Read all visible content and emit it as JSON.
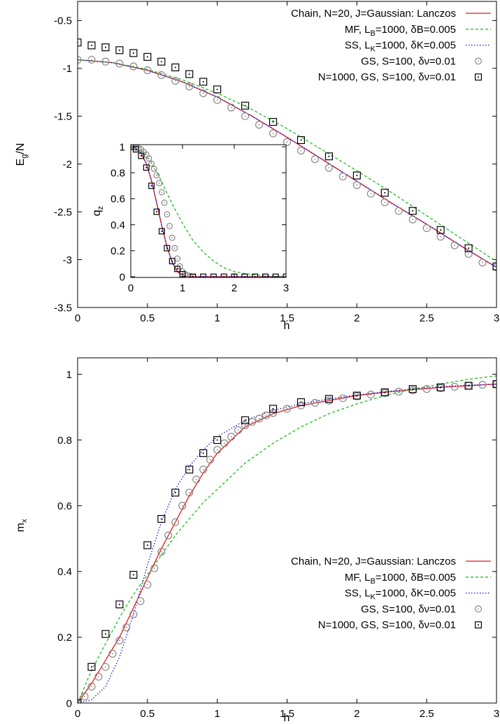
{
  "chart_data": [
    {
      "type": "line",
      "xlabel": "h",
      "ylabel_main": "E",
      "ylabel_sub": "g",
      "ylabel_tail": "/N",
      "xlim": [
        0,
        3
      ],
      "ylim": [
        -3.5,
        -0.3
      ],
      "xticks": [
        "0",
        "0.5",
        "1",
        "1.5",
        "2",
        "2.5",
        "3"
      ],
      "yticks": [
        "-3.5",
        "-3",
        "-2.5",
        "-2",
        "-1.5",
        "-1",
        "-0.5"
      ],
      "xtick_values": [
        0,
        0.5,
        1,
        1.5,
        2,
        2.5,
        3
      ],
      "ytick_values": [
        -3.5,
        -3,
        -2.5,
        -2,
        -1.5,
        -1,
        -0.5
      ],
      "legend_position": "top-right",
      "legend": [
        {
          "parts": [
            "Chain, N=20, J=Gaussian: Lanczos"
          ]
        },
        {
          "parts": [
            "MF, L",
            "B",
            "=1000, δB=0.005"
          ]
        },
        {
          "parts": [
            "SS, L",
            "K",
            "=1000, δK=0.005"
          ]
        },
        {
          "parts": [
            "GS, S=100, δν=0.01"
          ]
        },
        {
          "parts": [
            "N=1000, GS, S=100, δν=0.01"
          ]
        }
      ],
      "series": [
        {
          "key": "lanczos",
          "style": "solid",
          "color": "#e41a1c",
          "x": [
            0,
            0.25,
            0.5,
            0.75,
            1,
            1.25,
            1.5,
            1.75,
            2,
            2.25,
            2.5,
            2.75,
            3
          ],
          "y": [
            -0.91,
            -0.94,
            -1.02,
            -1.14,
            -1.3,
            -1.5,
            -1.72,
            -1.95,
            -2.18,
            -2.41,
            -2.63,
            -2.86,
            -3.08
          ]
        },
        {
          "key": "mf",
          "style": "dashed",
          "color": "#1fbf1f",
          "x": [
            0,
            0.25,
            0.5,
            0.75,
            1,
            1.25,
            1.5,
            1.75,
            2,
            2.25,
            2.5,
            2.75,
            3
          ],
          "y": [
            -0.91,
            -0.94,
            -1.01,
            -1.12,
            -1.26,
            -1.43,
            -1.63,
            -1.85,
            -2.07,
            -2.3,
            -2.54,
            -2.78,
            -3.02
          ]
        },
        {
          "key": "ss",
          "style": "dotted",
          "color": "#1515d6",
          "x": [
            0,
            0.25,
            0.5,
            0.75,
            1,
            1.25,
            1.5,
            1.75,
            2,
            2.25,
            2.5,
            2.75,
            3
          ],
          "y": [
            -0.91,
            -0.94,
            -1.02,
            -1.14,
            -1.3,
            -1.5,
            -1.72,
            -1.95,
            -2.18,
            -2.41,
            -2.63,
            -2.86,
            -3.08
          ]
        },
        {
          "key": "gs",
          "style": "circle",
          "color": "#888888",
          "x": [
            0,
            0.1,
            0.2,
            0.3,
            0.4,
            0.5,
            0.6,
            0.7,
            0.8,
            0.9,
            1.0,
            1.1,
            1.2,
            1.3,
            1.4,
            1.5,
            1.6,
            1.7,
            1.8,
            1.9,
            2.0,
            2.1,
            2.2,
            2.3,
            2.4,
            2.5,
            2.6,
            2.7,
            2.8,
            2.9,
            3.0
          ],
          "y": [
            -0.91,
            -0.91,
            -0.93,
            -0.95,
            -0.98,
            -1.02,
            -1.07,
            -1.13,
            -1.19,
            -1.26,
            -1.33,
            -1.41,
            -1.5,
            -1.59,
            -1.68,
            -1.77,
            -1.86,
            -1.95,
            -2.04,
            -2.13,
            -2.22,
            -2.31,
            -2.4,
            -2.49,
            -2.58,
            -2.67,
            -2.76,
            -2.85,
            -2.94,
            -3.03,
            -3.08
          ]
        },
        {
          "key": "n1000",
          "style": "square",
          "color": "#000000",
          "x": [
            0,
            0.1,
            0.2,
            0.3,
            0.4,
            0.5,
            0.6,
            0.7,
            0.8,
            0.9,
            1.0,
            1.2,
            1.4,
            1.6,
            1.8,
            2.0,
            2.2,
            2.4,
            2.6,
            2.8,
            3.0
          ],
          "y": [
            -0.73,
            -0.76,
            -0.78,
            -0.81,
            -0.84,
            -0.88,
            -0.93,
            -0.99,
            -1.06,
            -1.14,
            -1.22,
            -1.39,
            -1.56,
            -1.75,
            -1.92,
            -2.12,
            -2.3,
            -2.49,
            -2.69,
            -2.88,
            -3.07
          ]
        }
      ],
      "inset": {
        "type": "line",
        "xlabel": "",
        "ylabel_main": "q",
        "ylabel_sub": "z",
        "xlim": [
          0,
          3
        ],
        "ylim": [
          0,
          1
        ],
        "xticks": [
          "0",
          "1",
          "2",
          "3"
        ],
        "yticks": [
          "0",
          "0.2",
          "0.4",
          "0.6",
          "0.8",
          "1"
        ],
        "xtick_values": [
          0,
          1,
          2,
          3
        ],
        "ytick_values": [
          0,
          0.2,
          0.4,
          0.6,
          0.8,
          1
        ],
        "series": [
          {
            "key": "lanczos",
            "style": "solid",
            "color": "#e41a1c",
            "x": [
              0,
              0.1,
              0.2,
              0.3,
              0.4,
              0.5,
              0.6,
              0.7,
              0.8,
              0.9,
              1.0,
              1.1,
              1.2,
              1.5,
              2,
              3
            ],
            "y": [
              1,
              0.99,
              0.95,
              0.87,
              0.74,
              0.57,
              0.39,
              0.23,
              0.11,
              0.04,
              0.01,
              0.002,
              0,
              0,
              0,
              0
            ]
          },
          {
            "key": "mf",
            "style": "dashed",
            "color": "#1fbf1f",
            "x": [
              0,
              0.2,
              0.4,
              0.6,
              0.8,
              1.0,
              1.2,
              1.4,
              1.6,
              1.8,
              2.0,
              2.2,
              2.4,
              2.6,
              2.8,
              3.0
            ],
            "y": [
              1,
              0.97,
              0.88,
              0.73,
              0.56,
              0.41,
              0.28,
              0.19,
              0.12,
              0.07,
              0.04,
              0.025,
              0.015,
              0.008,
              0.004,
              0.002
            ]
          },
          {
            "key": "ss",
            "style": "dotted",
            "color": "#1515d6",
            "x": [
              0,
              0.1,
              0.2,
              0.3,
              0.4,
              0.5,
              0.6,
              0.7,
              0.8,
              0.9,
              1.0,
              1.1,
              1.2,
              1.5,
              2,
              3
            ],
            "y": [
              1,
              0.99,
              0.95,
              0.87,
              0.74,
              0.57,
              0.39,
              0.23,
              0.11,
              0.04,
              0.01,
              0.002,
              0,
              0,
              0,
              0
            ]
          },
          {
            "key": "gs",
            "style": "circle",
            "color": "#888888",
            "x": [
              0,
              0.05,
              0.1,
              0.15,
              0.2,
              0.25,
              0.3,
              0.35,
              0.4,
              0.45,
              0.5,
              0.55,
              0.6,
              0.65,
              0.7,
              0.75,
              0.8,
              0.85,
              0.9,
              0.95,
              1.0,
              1.05,
              1.1,
              1.15,
              1.2
            ],
            "y": [
              1,
              1,
              0.99,
              0.99,
              0.98,
              0.96,
              0.94,
              0.91,
              0.87,
              0.83,
              0.78,
              0.72,
              0.65,
              0.57,
              0.48,
              0.39,
              0.3,
              0.22,
              0.14,
              0.08,
              0.04,
              0.02,
              0.01,
              0.005,
              0
            ]
          },
          {
            "key": "n1000",
            "style": "square",
            "color": "#000000",
            "x": [
              0,
              0.1,
              0.2,
              0.3,
              0.4,
              0.5,
              0.6,
              0.7,
              0.8,
              0.9,
              1.0,
              1.2,
              1.4,
              1.6,
              1.8,
              2.0,
              2.2,
              2.4,
              2.6,
              2.8,
              3.0
            ],
            "y": [
              1,
              0.98,
              0.93,
              0.84,
              0.7,
              0.5,
              0.35,
              0.22,
              0.12,
              0.06,
              0.02,
              0,
              0,
              0,
              0,
              0,
              0,
              0,
              0,
              0,
              0
            ]
          }
        ]
      }
    },
    {
      "type": "line",
      "xlabel": "h",
      "ylabel_main": "m",
      "ylabel_sub": "x",
      "ylabel_tail": "",
      "xlim": [
        0,
        3
      ],
      "ylim": [
        0,
        1.05
      ],
      "xticks": [
        "0",
        "0.5",
        "1",
        "1.5",
        "2",
        "2.5",
        "3"
      ],
      "yticks": [
        "0",
        "0.2",
        "0.4",
        "0.6",
        "0.8",
        "1"
      ],
      "xtick_values": [
        0,
        0.5,
        1,
        1.5,
        2,
        2.5,
        3
      ],
      "ytick_values": [
        0,
        0.2,
        0.4,
        0.6,
        0.8,
        1
      ],
      "legend_position": "bottom-right",
      "legend": [
        {
          "parts": [
            "Chain, N=20, J=Gaussian: Lanczos"
          ]
        },
        {
          "parts": [
            "MF, L",
            "B",
            "=1000, δB=0.005"
          ]
        },
        {
          "parts": [
            "SS, L",
            "K",
            "=1000, δK=0.005"
          ]
        },
        {
          "parts": [
            "GS, S=100, δν=0.01"
          ]
        },
        {
          "parts": [
            "N=1000, GS, S=100, δν=0.01"
          ]
        }
      ],
      "series": [
        {
          "key": "lanczos",
          "style": "solid",
          "color": "#e41a1c",
          "x": [
            0,
            0.1,
            0.2,
            0.3,
            0.4,
            0.5,
            0.6,
            0.7,
            0.8,
            0.9,
            1.0,
            1.2,
            1.4,
            1.6,
            1.8,
            2.0,
            2.2,
            2.4,
            2.6,
            2.8,
            3.0
          ],
          "y": [
            0,
            0.06,
            0.13,
            0.2,
            0.29,
            0.38,
            0.47,
            0.55,
            0.63,
            0.7,
            0.76,
            0.84,
            0.88,
            0.905,
            0.92,
            0.935,
            0.945,
            0.953,
            0.96,
            0.965,
            0.97
          ]
        },
        {
          "key": "mf",
          "style": "dashed",
          "color": "#1fbf1f",
          "x": [
            0,
            0.1,
            0.2,
            0.3,
            0.4,
            0.5,
            0.6,
            0.7,
            0.8,
            0.9,
            1.0,
            1.2,
            1.4,
            1.6,
            1.8,
            2.0,
            2.2,
            2.4,
            2.6,
            2.8,
            3.0
          ],
          "y": [
            0,
            0.1,
            0.18,
            0.26,
            0.33,
            0.39,
            0.45,
            0.51,
            0.56,
            0.61,
            0.65,
            0.73,
            0.79,
            0.84,
            0.88,
            0.91,
            0.935,
            0.955,
            0.97,
            0.985,
            0.995
          ]
        },
        {
          "key": "ss",
          "style": "dotted",
          "color": "#1515d6",
          "x": [
            0,
            0.1,
            0.2,
            0.3,
            0.4,
            0.5,
            0.6,
            0.7,
            0.8,
            0.9,
            1.0,
            1.2,
            1.4,
            1.6,
            1.8,
            2.0,
            2.2,
            2.4,
            2.6,
            2.8,
            3.0
          ],
          "y": [
            0,
            0.01,
            0.05,
            0.14,
            0.27,
            0.42,
            0.55,
            0.65,
            0.72,
            0.77,
            0.81,
            0.86,
            0.89,
            0.91,
            0.925,
            0.937,
            0.947,
            0.955,
            0.962,
            0.967,
            0.97
          ]
        },
        {
          "key": "gs",
          "style": "circle",
          "color": "#888888",
          "x": [
            0,
            0.05,
            0.1,
            0.15,
            0.2,
            0.25,
            0.3,
            0.35,
            0.4,
            0.45,
            0.5,
            0.55,
            0.6,
            0.65,
            0.7,
            0.75,
            0.8,
            0.85,
            0.9,
            0.95,
            1.0,
            1.05,
            1.1,
            1.15,
            1.2,
            1.25,
            1.3,
            1.35,
            1.4,
            1.5,
            1.6,
            1.7,
            1.8,
            1.9,
            2.0,
            2.1,
            2.2,
            2.3,
            2.4,
            2.5,
            2.6,
            2.7,
            2.8,
            2.9,
            3.0
          ],
          "y": [
            0,
            0.02,
            0.05,
            0.08,
            0.11,
            0.15,
            0.19,
            0.23,
            0.27,
            0.31,
            0.36,
            0.41,
            0.46,
            0.51,
            0.55,
            0.6,
            0.64,
            0.68,
            0.71,
            0.74,
            0.77,
            0.79,
            0.81,
            0.83,
            0.845,
            0.855,
            0.865,
            0.875,
            0.882,
            0.895,
            0.905,
            0.913,
            0.92,
            0.927,
            0.933,
            0.938,
            0.943,
            0.947,
            0.951,
            0.955,
            0.958,
            0.962,
            0.965,
            0.968,
            0.97
          ]
        },
        {
          "key": "n1000",
          "style": "square",
          "color": "#000000",
          "x": [
            0,
            0.1,
            0.2,
            0.3,
            0.4,
            0.5,
            0.6,
            0.7,
            0.8,
            0.9,
            1.0,
            1.2,
            1.4,
            1.6,
            1.8,
            2.0,
            2.2,
            2.4,
            2.6,
            2.8,
            3.0
          ],
          "y": [
            0,
            0.11,
            0.21,
            0.3,
            0.39,
            0.48,
            0.56,
            0.64,
            0.71,
            0.76,
            0.8,
            0.86,
            0.895,
            0.915,
            0.925,
            0.935,
            0.945,
            0.955,
            0.96,
            0.965,
            0.97
          ]
        }
      ]
    }
  ]
}
